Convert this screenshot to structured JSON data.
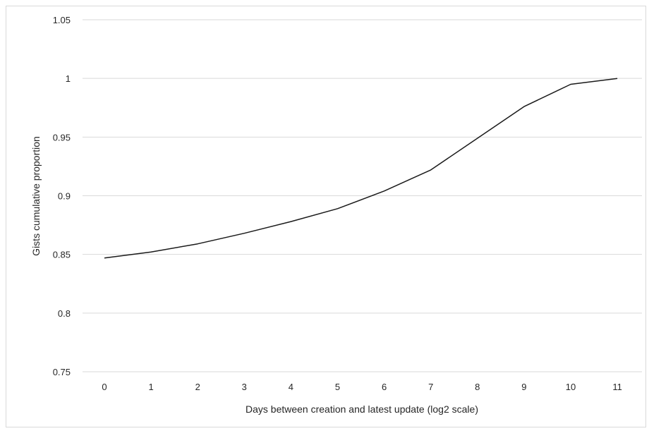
{
  "chart_data": {
    "type": "line",
    "title": "",
    "xlabel": "Days between  creation and latest update (log2 scale)",
    "ylabel": "Gists cumulative proportion",
    "x": [
      0,
      1,
      2,
      3,
      4,
      5,
      6,
      7,
      8,
      9,
      10,
      11
    ],
    "series": [
      {
        "name": "",
        "values": [
          0.847,
          0.852,
          0.859,
          0.868,
          0.878,
          0.889,
          0.904,
          0.922,
          0.949,
          0.976,
          0.995,
          1.0
        ]
      }
    ],
    "ylim": [
      0.75,
      1.05
    ],
    "yticks": [
      0.75,
      0.8,
      0.85,
      0.9,
      0.95,
      1,
      1.05
    ],
    "ytick_labels": [
      "0.75",
      "0.8",
      "0.85",
      "0.9",
      "0.95",
      "1",
      "1.05"
    ],
    "xtick_labels": [
      "0",
      "1",
      "2",
      "3",
      "4",
      "5",
      "6",
      "7",
      "8",
      "9",
      "10",
      "11"
    ],
    "grid": "horizontal",
    "legend": "none",
    "colors": {
      "line": "#1a1a1a",
      "grid": "#d9d9d9",
      "text": "#262626"
    }
  }
}
